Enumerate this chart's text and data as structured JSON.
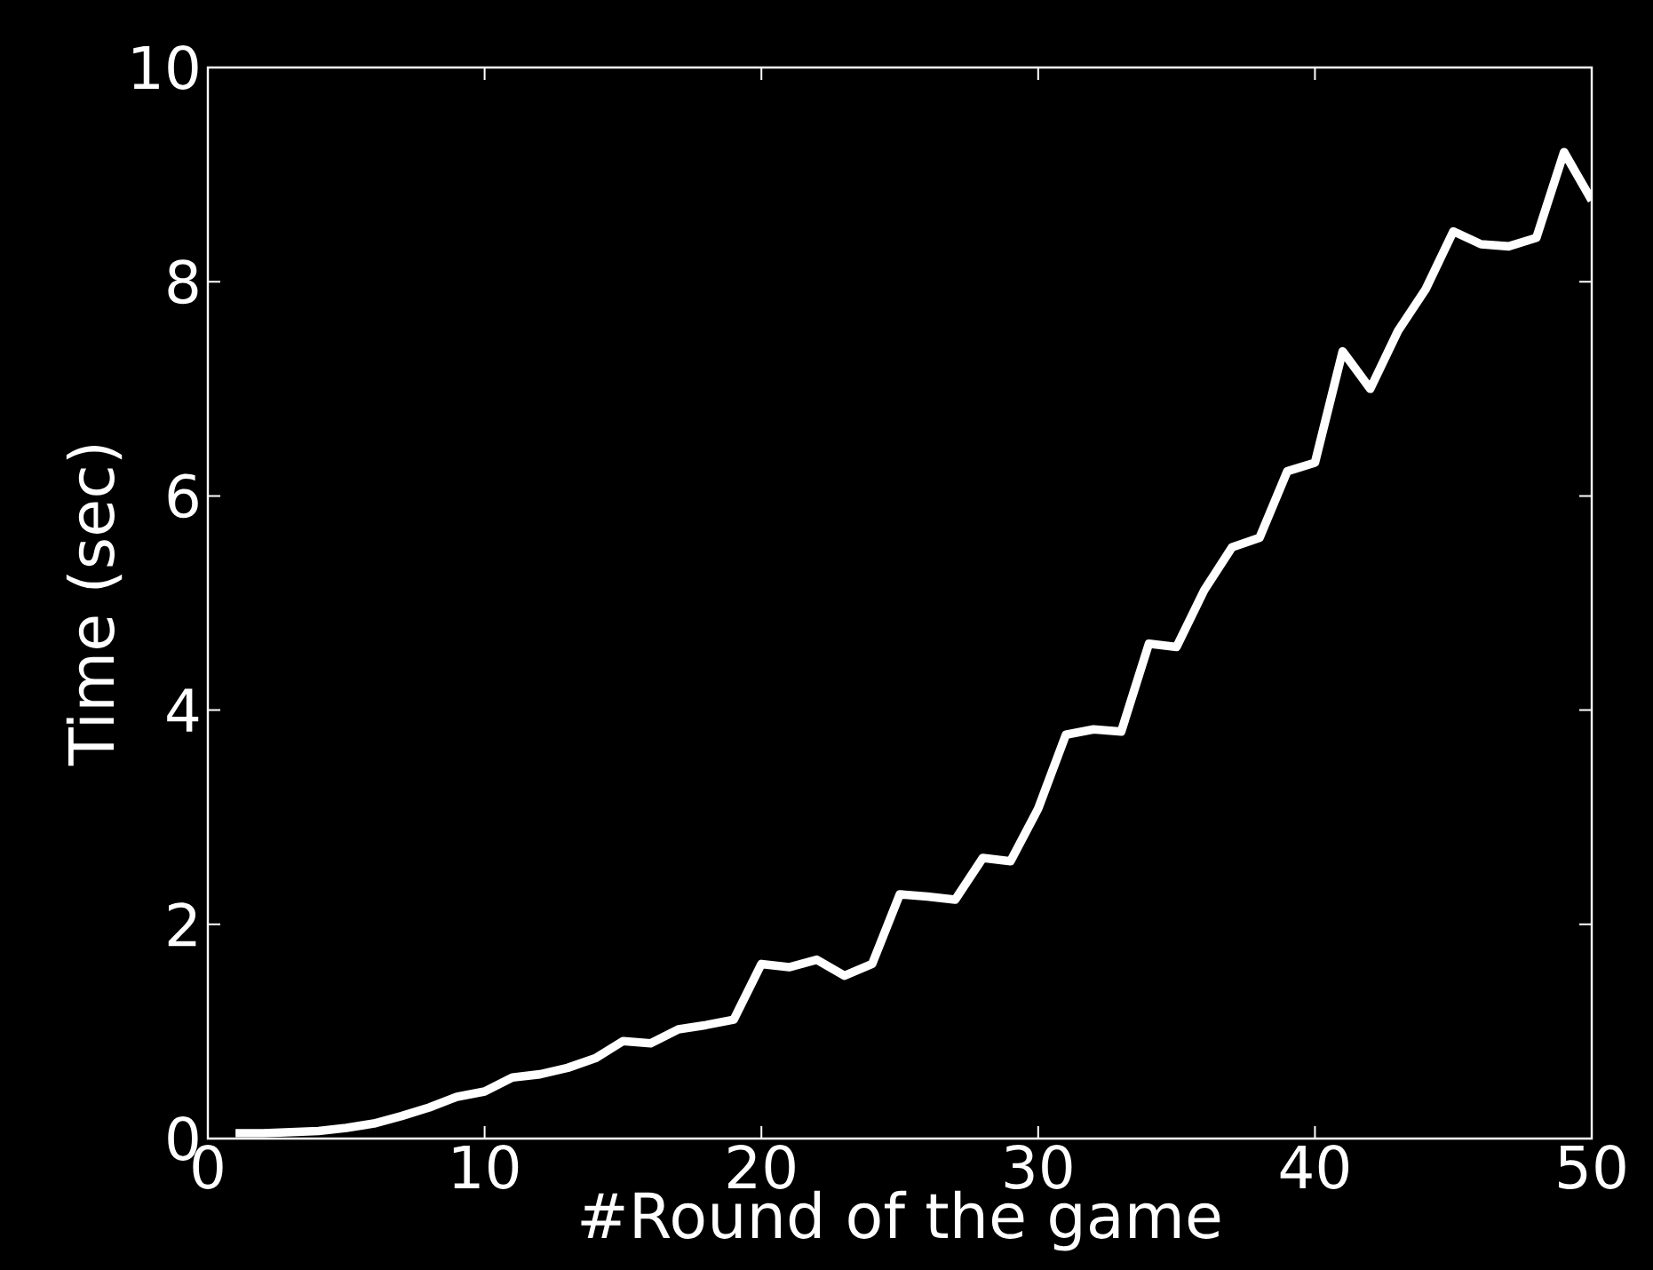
{
  "chart_data": {
    "type": "line",
    "xlabel": "#Round of the game",
    "ylabel": "Time (sec)",
    "x": [
      1,
      2,
      3,
      4,
      5,
      6,
      7,
      8,
      9,
      10,
      11,
      12,
      13,
      14,
      15,
      16,
      17,
      18,
      19,
      20,
      21,
      22,
      23,
      24,
      25,
      26,
      27,
      28,
      29,
      30,
      31,
      32,
      33,
      34,
      35,
      36,
      37,
      38,
      39,
      40,
      41,
      42,
      43,
      44,
      45,
      46,
      47,
      48,
      49,
      50
    ],
    "values": [
      0.05,
      0.05,
      0.06,
      0.07,
      0.1,
      0.14,
      0.21,
      0.29,
      0.39,
      0.44,
      0.57,
      0.6,
      0.66,
      0.75,
      0.91,
      0.89,
      1.02,
      1.06,
      1.11,
      1.63,
      1.6,
      1.67,
      1.52,
      1.63,
      2.28,
      2.26,
      2.23,
      2.62,
      2.59,
      3.08,
      3.77,
      3.82,
      3.8,
      4.62,
      4.59,
      5.12,
      5.52,
      5.61,
      6.23,
      6.31,
      7.35,
      7.0,
      7.54,
      7.93,
      8.47,
      8.35,
      8.33,
      8.41,
      9.21,
      8.76
    ],
    "color": "#ffffff",
    "line_style": "solid",
    "xlim": [
      0,
      50
    ],
    "ylim": [
      0,
      10
    ],
    "xticks": [
      0,
      10,
      20,
      30,
      40,
      50
    ],
    "yticks": [
      0,
      2,
      4,
      6,
      8,
      10
    ]
  }
}
